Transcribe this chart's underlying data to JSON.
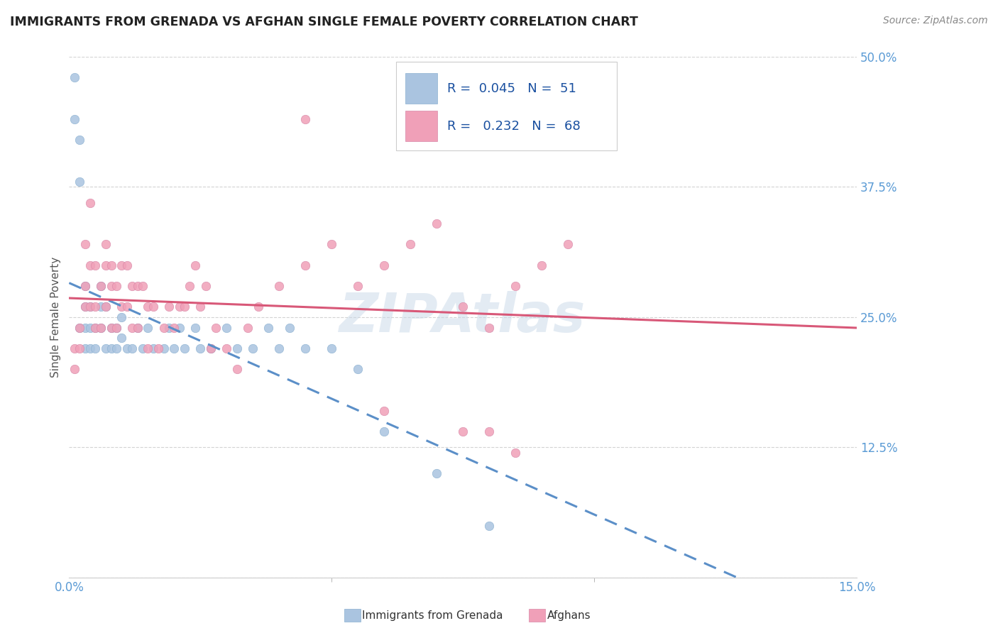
{
  "title": "IMMIGRANTS FROM GRENADA VS AFGHAN SINGLE FEMALE POVERTY CORRELATION CHART",
  "source": "Source: ZipAtlas.com",
  "ylabel": "Single Female Poverty",
  "xlim": [
    0.0,
    0.15
  ],
  "ylim": [
    0.0,
    0.5
  ],
  "yticks": [
    0.0,
    0.125,
    0.25,
    0.375,
    0.5
  ],
  "ytick_labels": [
    "",
    "12.5%",
    "25.0%",
    "37.5%",
    "50.0%"
  ],
  "background_color": "#ffffff",
  "grid_color": "#c8c8c8",
  "title_color": "#222222",
  "axis_tick_color": "#5b9bd5",
  "series1_color": "#aac4e0",
  "series2_color": "#f0a0b8",
  "trendline1_color": "#5b8fc8",
  "trendline2_color": "#d85878",
  "watermark_color": "#c8d8e8",
  "grenada_x": [
    0.001,
    0.001,
    0.002,
    0.002,
    0.002,
    0.003,
    0.003,
    0.003,
    0.003,
    0.004,
    0.004,
    0.004,
    0.005,
    0.005,
    0.006,
    0.006,
    0.006,
    0.007,
    0.007,
    0.008,
    0.008,
    0.009,
    0.009,
    0.01,
    0.01,
    0.011,
    0.012,
    0.013,
    0.014,
    0.015,
    0.016,
    0.018,
    0.019,
    0.02,
    0.021,
    0.022,
    0.024,
    0.025,
    0.027,
    0.03,
    0.032,
    0.035,
    0.038,
    0.04,
    0.042,
    0.045,
    0.05,
    0.055,
    0.06,
    0.07,
    0.08
  ],
  "grenada_y": [
    0.44,
    0.48,
    0.38,
    0.42,
    0.24,
    0.26,
    0.28,
    0.22,
    0.24,
    0.26,
    0.24,
    0.22,
    0.24,
    0.22,
    0.26,
    0.28,
    0.24,
    0.26,
    0.22,
    0.24,
    0.22,
    0.24,
    0.22,
    0.25,
    0.23,
    0.22,
    0.22,
    0.24,
    0.22,
    0.24,
    0.22,
    0.22,
    0.24,
    0.22,
    0.24,
    0.22,
    0.24,
    0.22,
    0.22,
    0.24,
    0.22,
    0.22,
    0.24,
    0.22,
    0.24,
    0.22,
    0.22,
    0.2,
    0.14,
    0.1,
    0.05
  ],
  "afghan_x": [
    0.001,
    0.001,
    0.002,
    0.002,
    0.003,
    0.003,
    0.003,
    0.004,
    0.004,
    0.004,
    0.005,
    0.005,
    0.005,
    0.006,
    0.006,
    0.007,
    0.007,
    0.007,
    0.008,
    0.008,
    0.008,
    0.009,
    0.009,
    0.01,
    0.01,
    0.011,
    0.011,
    0.012,
    0.012,
    0.013,
    0.013,
    0.014,
    0.015,
    0.015,
    0.016,
    0.017,
    0.018,
    0.019,
    0.02,
    0.021,
    0.022,
    0.023,
    0.024,
    0.025,
    0.026,
    0.027,
    0.028,
    0.03,
    0.032,
    0.034,
    0.036,
    0.04,
    0.045,
    0.05,
    0.055,
    0.06,
    0.065,
    0.07,
    0.075,
    0.08,
    0.085,
    0.09,
    0.095,
    0.045,
    0.06,
    0.075,
    0.08,
    0.085
  ],
  "afghan_y": [
    0.22,
    0.2,
    0.24,
    0.22,
    0.32,
    0.28,
    0.26,
    0.36,
    0.3,
    0.26,
    0.3,
    0.26,
    0.24,
    0.28,
    0.24,
    0.32,
    0.3,
    0.26,
    0.3,
    0.28,
    0.24,
    0.28,
    0.24,
    0.3,
    0.26,
    0.3,
    0.26,
    0.28,
    0.24,
    0.28,
    0.24,
    0.28,
    0.26,
    0.22,
    0.26,
    0.22,
    0.24,
    0.26,
    0.24,
    0.26,
    0.26,
    0.28,
    0.3,
    0.26,
    0.28,
    0.22,
    0.24,
    0.22,
    0.2,
    0.24,
    0.26,
    0.28,
    0.3,
    0.32,
    0.28,
    0.3,
    0.32,
    0.34,
    0.26,
    0.24,
    0.28,
    0.3,
    0.32,
    0.44,
    0.16,
    0.14,
    0.14,
    0.12
  ]
}
